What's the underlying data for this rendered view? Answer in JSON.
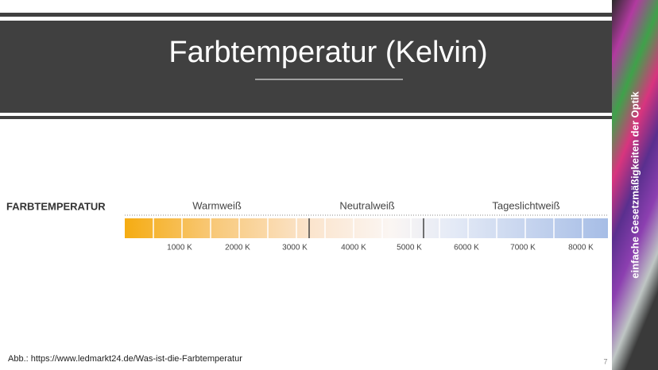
{
  "slide": {
    "title": "Farbtemperatur (Kelvin)",
    "sidebar": "einfache Gesetzmäßigkeiten der Optik",
    "page_number": "7"
  },
  "figure": {
    "heading": "FARBTEMPERATUR",
    "groups": [
      "Warmweiß",
      "Neutralweiß",
      "Tageslichtweiß"
    ],
    "ticks": [
      "1000 K",
      "2000 K",
      "3000 K",
      "4000 K",
      "5000 K",
      "6000 K",
      "7000 K",
      "8000 K"
    ],
    "caption": "Abb.: https://www.ledmarkt24.de/Was-ist-die-Farbtemperatur"
  }
}
